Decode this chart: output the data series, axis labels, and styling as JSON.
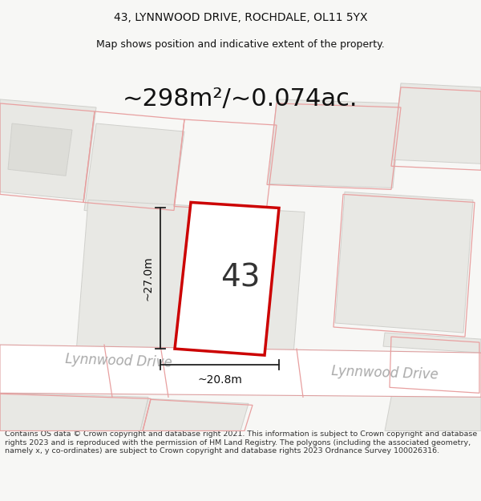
{
  "title_line1": "43, LYNNWOOD DRIVE, ROCHDALE, OL11 5YX",
  "title_line2": "Map shows position and indicative extent of the property.",
  "area_text": "~298m²/~0.074ac.",
  "number_label": "43",
  "dim_height": "~27.0m",
  "dim_width": "~20.8m",
  "street_label1": "Lynnwood Drive",
  "street_label2": "Lynnwood Drive",
  "copyright_text": "Contains OS data © Crown copyright and database right 2021. This information is subject to Crown copyright and database rights 2023 and is reproduced with the permission of HM Land Registry. The polygons (including the associated geometry, namely x, y co-ordinates) are subject to Crown copyright and database rights 2023 Ordnance Survey 100026316.",
  "bg_color": "#f7f7f5",
  "map_bg": "#f2f2ee",
  "building_fill": "#e8e8e4",
  "building_edge": "#d0d0cc",
  "red_stroke": "#cc0000",
  "road_fill": "#ffffff",
  "road_edge": "#dda0a0",
  "pink": "#e8a0a0",
  "title_fontsize": 10,
  "subtitle_fontsize": 9,
  "area_fontsize": 22,
  "number_fontsize": 28,
  "dim_fontsize": 10,
  "street_fontsize": 12,
  "copyright_fontsize": 6.8
}
